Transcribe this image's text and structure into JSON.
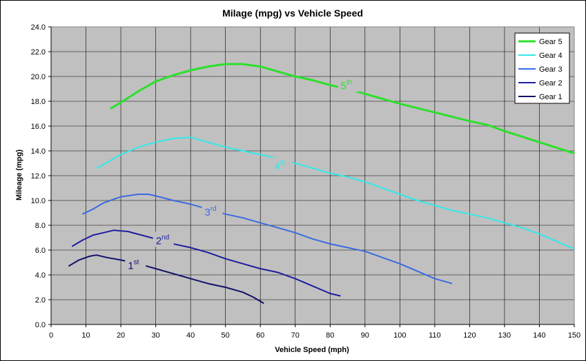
{
  "chart_data": {
    "type": "line",
    "title": "Milage (mpg) vs Vehicle Speed",
    "xlabel": "Vehicle Speed (mph)",
    "ylabel": "Mileage (mpg)",
    "xlim": [
      0,
      150
    ],
    "ylim": [
      0,
      24
    ],
    "x_ticks": [
      "0",
      "10",
      "20",
      "30",
      "40",
      "50",
      "60",
      "70",
      "80",
      "90",
      "100",
      "110",
      "120",
      "130",
      "140",
      "150"
    ],
    "y_ticks": [
      "0.0",
      "2.0",
      "4.0",
      "6.0",
      "8.0",
      "10.0",
      "12.0",
      "14.0",
      "16.0",
      "18.0",
      "20.0",
      "22.0",
      "24.0"
    ],
    "grid": true,
    "legend_position": "top-right",
    "plot_background": "#c0c0c0",
    "series": [
      {
        "name": "Gear 5",
        "color": "#2be02b",
        "annotation": {
          "base": "5",
          "sup": "th",
          "x": 85,
          "y": 19.2
        },
        "points": [
          [
            17,
            17.4
          ],
          [
            20,
            17.9
          ],
          [
            25,
            18.8
          ],
          [
            30,
            19.6
          ],
          [
            35,
            20.1
          ],
          [
            40,
            20.5
          ],
          [
            45,
            20.8
          ],
          [
            50,
            21.0
          ],
          [
            55,
            21.0
          ],
          [
            60,
            20.8
          ],
          [
            65,
            20.4
          ],
          [
            70,
            20.0
          ],
          [
            75,
            19.7
          ],
          [
            80,
            19.3
          ],
          [
            85,
            19.0
          ],
          [
            90,
            18.6
          ],
          [
            95,
            18.2
          ],
          [
            100,
            17.8
          ],
          [
            110,
            17.1
          ],
          [
            120,
            16.4
          ],
          [
            125,
            16.1
          ],
          [
            130,
            15.6
          ],
          [
            140,
            14.7
          ],
          [
            150,
            13.8
          ]
        ]
      },
      {
        "name": "Gear 4",
        "color": "#33e8e8",
        "annotation": {
          "base": "4",
          "sup": "th",
          "x": 66,
          "y": 12.7
        },
        "points": [
          [
            13,
            12.6
          ],
          [
            15,
            12.9
          ],
          [
            20,
            13.7
          ],
          [
            25,
            14.3
          ],
          [
            30,
            14.7
          ],
          [
            35,
            15.0
          ],
          [
            40,
            15.1
          ],
          [
            45,
            14.7
          ],
          [
            50,
            14.3
          ],
          [
            55,
            14.0
          ],
          [
            60,
            13.7
          ],
          [
            65,
            13.4
          ],
          [
            70,
            13.0
          ],
          [
            75,
            12.6
          ],
          [
            80,
            12.2
          ],
          [
            85,
            11.9
          ],
          [
            90,
            11.5
          ],
          [
            95,
            11.0
          ],
          [
            100,
            10.5
          ],
          [
            105,
            10.0
          ],
          [
            110,
            9.6
          ],
          [
            115,
            9.2
          ],
          [
            120,
            8.9
          ],
          [
            125,
            8.6
          ],
          [
            130,
            8.2
          ],
          [
            135,
            7.8
          ],
          [
            140,
            7.3
          ],
          [
            145,
            6.7
          ],
          [
            150,
            6.1
          ]
        ]
      },
      {
        "name": "Gear 3",
        "color": "#3a6ae0",
        "annotation": {
          "base": "3",
          "sup": "rd",
          "x": 46,
          "y": 9.0
        },
        "points": [
          [
            9,
            8.9
          ],
          [
            12,
            9.3
          ],
          [
            15,
            9.8
          ],
          [
            20,
            10.3
          ],
          [
            25,
            10.5
          ],
          [
            28,
            10.5
          ],
          [
            31,
            10.3
          ],
          [
            35,
            10.0
          ],
          [
            40,
            9.7
          ],
          [
            45,
            9.3
          ],
          [
            50,
            8.9
          ],
          [
            55,
            8.6
          ],
          [
            60,
            8.2
          ],
          [
            65,
            7.8
          ],
          [
            70,
            7.4
          ],
          [
            75,
            6.9
          ],
          [
            80,
            6.5
          ],
          [
            85,
            6.2
          ],
          [
            90,
            5.9
          ],
          [
            95,
            5.4
          ],
          [
            100,
            4.9
          ],
          [
            105,
            4.3
          ],
          [
            110,
            3.7
          ],
          [
            115,
            3.3
          ]
        ]
      },
      {
        "name": "Gear 2",
        "color": "#1c1c9e",
        "annotation": {
          "base": "2",
          "sup": "nd",
          "x": 32,
          "y": 6.7
        },
        "points": [
          [
            6,
            6.3
          ],
          [
            9,
            6.8
          ],
          [
            12,
            7.2
          ],
          [
            15,
            7.4
          ],
          [
            18,
            7.6
          ],
          [
            22,
            7.5
          ],
          [
            26,
            7.2
          ],
          [
            30,
            6.9
          ],
          [
            35,
            6.5
          ],
          [
            40,
            6.2
          ],
          [
            45,
            5.8
          ],
          [
            50,
            5.3
          ],
          [
            55,
            4.9
          ],
          [
            60,
            4.5
          ],
          [
            65,
            4.2
          ],
          [
            70,
            3.7
          ],
          [
            75,
            3.1
          ],
          [
            80,
            2.5
          ],
          [
            83,
            2.3
          ]
        ]
      },
      {
        "name": "Gear 1",
        "color": "#10106a",
        "annotation": {
          "base": "1",
          "sup": "st",
          "x": 24,
          "y": 4.7
        },
        "points": [
          [
            5,
            4.7
          ],
          [
            8,
            5.2
          ],
          [
            11,
            5.5
          ],
          [
            13,
            5.6
          ],
          [
            16,
            5.4
          ],
          [
            20,
            5.2
          ],
          [
            25,
            4.9
          ],
          [
            30,
            4.5
          ],
          [
            35,
            4.1
          ],
          [
            40,
            3.7
          ],
          [
            45,
            3.3
          ],
          [
            50,
            3.0
          ],
          [
            55,
            2.6
          ],
          [
            58,
            2.2
          ],
          [
            61,
            1.7
          ]
        ]
      }
    ]
  }
}
